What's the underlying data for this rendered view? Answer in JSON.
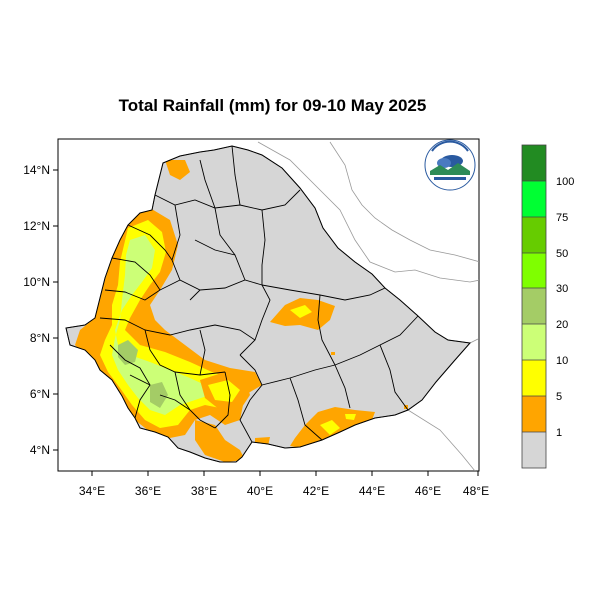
{
  "title": "Total Rainfall (mm) for 09-10 May 2025",
  "map": {
    "lon_range": [
      33,
      48
    ],
    "lat_range": [
      3.2,
      15
    ],
    "x_ticks": [
      "34°E",
      "36°E",
      "38°E",
      "40°E",
      "42°E",
      "44°E",
      "46°E",
      "48°E"
    ],
    "y_ticks": [
      "14°N",
      "12°N",
      "10°N",
      "8°N",
      "6°N",
      "4°N"
    ],
    "land_color": "#d6d6d6",
    "logo": "ethiopian-meteorology-institute-logo"
  },
  "colorbar": {
    "labels": [
      "1",
      "5",
      "10",
      "20",
      "30",
      "50",
      "75",
      "100"
    ],
    "colors": [
      "#d6d6d6",
      "#ffa500",
      "#ffff00",
      "#ccff77",
      "#a4cc66",
      "#7fff00",
      "#66cc00",
      "#00ff33",
      "#00cc00",
      "#228b22"
    ]
  }
}
